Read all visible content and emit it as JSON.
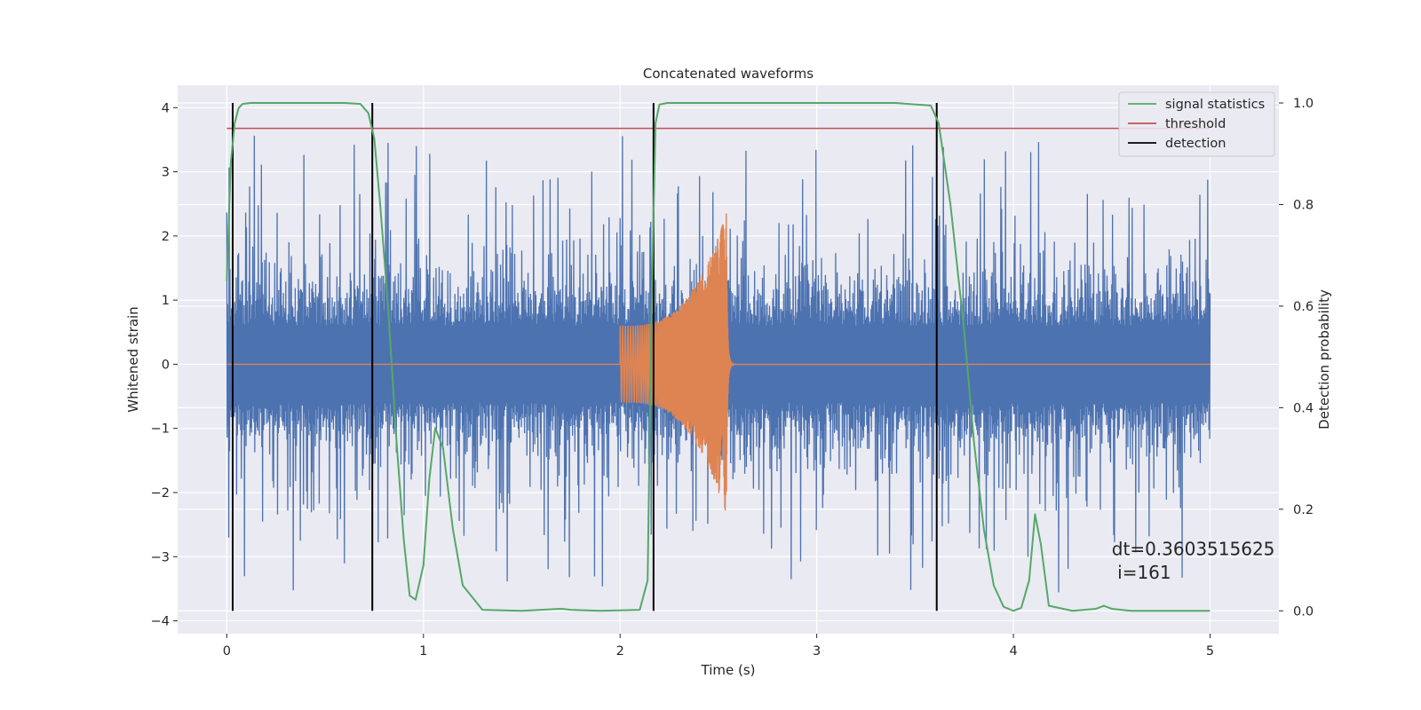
{
  "chart_data": {
    "type": "line",
    "title": "Concatenated waveforms",
    "xlabel": "Time (s)",
    "ylabel_left": "Whitened strain",
    "ylabel_right": "Detection probability",
    "xlim": [
      -0.25,
      5.35
    ],
    "ylim_left": [
      -4.2,
      4.35
    ],
    "ylim_right": [
      -0.045,
      1.035
    ],
    "x_ticks": [
      0,
      1,
      2,
      3,
      4,
      5
    ],
    "y_ticks_left": [
      4,
      3,
      2,
      1,
      0,
      -1,
      -2,
      -3,
      -4
    ],
    "y_ticks_right": [
      1.0,
      0.8,
      0.6,
      0.4,
      0.2,
      0.0
    ],
    "y_tick_labels_left": [
      "4",
      "3",
      "2",
      "1",
      "0",
      "−1",
      "−2",
      "−3",
      "−4"
    ],
    "y_tick_labels_right": [
      "1.0",
      "0.8",
      "0.6",
      "0.4",
      "0.2",
      "0.0"
    ],
    "grid": true,
    "legend_position": "top-right",
    "colors": {
      "background": "#eaeaf2",
      "strain": "#4c72b0",
      "injected_waveform": "#dd8452",
      "signal_statistics": "#55a868",
      "threshold": "#c44e52",
      "detection": "#000000"
    },
    "strain_series": {
      "x_range": [
        0,
        5
      ],
      "y_range_approx": [
        -3.8,
        3.95
      ],
      "typical_envelope": [
        -1.5,
        1.5
      ]
    },
    "injected_waveform": {
      "start": 2.0,
      "merger": 2.54,
      "initial_amplitude": 0.6,
      "peak_amplitude": 2.35
    },
    "signal_statistics": {
      "name": "signal statistics",
      "x": [
        0,
        0.02,
        0.04,
        0.06,
        0.08,
        0.12,
        0.2,
        0.4,
        0.6,
        0.68,
        0.72,
        0.75,
        0.78,
        0.82,
        0.86,
        0.9,
        0.93,
        0.96,
        1.0,
        1.03,
        1.06,
        1.1,
        1.15,
        1.2,
        1.3,
        1.5,
        1.65,
        1.7,
        1.75,
        1.9,
        2.1,
        2.14,
        2.16,
        2.18,
        2.2,
        2.24,
        2.3,
        2.6,
        3.0,
        3.4,
        3.58,
        3.62,
        3.68,
        3.75,
        3.8,
        3.85,
        3.9,
        3.95,
        4.0,
        4.04,
        4.08,
        4.11,
        4.14,
        4.18,
        4.3,
        4.42,
        4.46,
        4.5,
        4.6,
        5.0
      ],
      "y": [
        0.65,
        0.88,
        0.96,
        0.99,
        0.998,
        1.0,
        1.0,
        1.0,
        1.0,
        0.998,
        0.98,
        0.93,
        0.8,
        0.6,
        0.35,
        0.14,
        0.03,
        0.022,
        0.09,
        0.26,
        0.36,
        0.32,
        0.16,
        0.05,
        0.002,
        0.0,
        0.003,
        0.004,
        0.002,
        0.0,
        0.002,
        0.06,
        0.6,
        0.96,
        0.997,
        1.0,
        1.0,
        1.0,
        1.0,
        1.0,
        0.995,
        0.96,
        0.8,
        0.55,
        0.33,
        0.16,
        0.05,
        0.008,
        0.0,
        0.006,
        0.06,
        0.19,
        0.13,
        0.01,
        0.0,
        0.004,
        0.01,
        0.004,
        0.0,
        0.0
      ]
    },
    "threshold": {
      "name": "threshold",
      "value": 0.95,
      "x": [
        0,
        5
      ]
    },
    "detections": {
      "name": "detection",
      "x": [
        0.03,
        0.74,
        2.17,
        3.61
      ]
    },
    "legend": [
      "signal statistics",
      "threshold",
      "detection"
    ],
    "annotation_line1": "dt=0.3603515625",
    "annotation_line2": " i=161",
    "annotation_x": 4.5,
    "annotation_y_line1": 0.11,
    "annotation_y_line2": 0.063
  }
}
